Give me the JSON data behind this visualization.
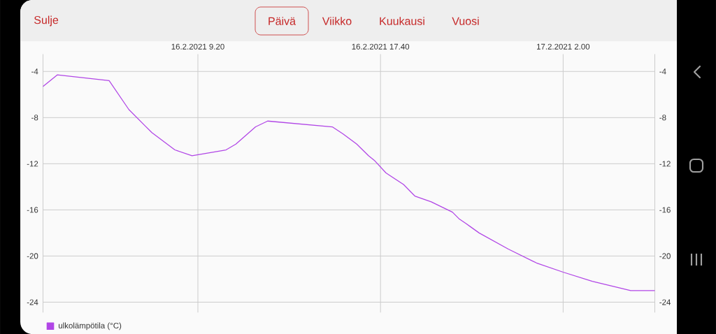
{
  "chart_data": {
    "type": "line",
    "annotations": [
      "Sulje",
      "Päivä",
      "Viikko",
      "Kuukausi",
      "Vuosi"
    ],
    "x": [
      "2021-02-16T02:16",
      "2021-02-16T02:55",
      "2021-02-16T05:17",
      "2021-02-16T06:11",
      "2021-02-16T06:55",
      "2021-02-16T07:14",
      "2021-02-16T08:17",
      "2021-02-16T09:04",
      "2021-02-16T10:37",
      "2021-02-16T11:04",
      "2021-02-16T11:58",
      "2021-02-16T12:31",
      "2021-02-16T15:28",
      "2021-02-16T15:57",
      "2021-02-16T16:35",
      "2021-02-16T17:07",
      "2021-02-16T17:23",
      "2021-02-16T17:55",
      "2021-02-16T18:43",
      "2021-02-16T19:14",
      "2021-02-16T19:59",
      "2021-02-16T20:57",
      "2021-02-16T21:16",
      "2021-02-16T21:35",
      "2021-02-16T21:48",
      "2021-02-16T22:10",
      "2021-02-16T23:30",
      "2021-02-17T00:47",
      "2021-02-17T02:00",
      "2021-02-17T03:20",
      "2021-02-17T05:05",
      "2021-02-17T06:11"
    ],
    "series": [
      {
        "name": "ulkolämpötila (°C)",
        "color": "#b146e6",
        "values": [
          -5.3,
          -4.3,
          -4.8,
          -7.3,
          -8.7,
          -9.3,
          -10.8,
          -11.3,
          -10.8,
          -10.3,
          -8.8,
          -8.3,
          -8.8,
          -9.4,
          -10.3,
          -11.3,
          -11.7,
          -12.8,
          -13.8,
          -14.8,
          -15.3,
          -16.2,
          -16.8,
          -17.2,
          -17.5,
          -18.0,
          -19.4,
          -20.6,
          -21.4,
          -22.2,
          -23.0,
          -23.0
        ]
      }
    ],
    "xlim": [
      "2021-02-16T02:16",
      "2021-02-17T06:11"
    ],
    "xticks": [
      {
        "value": "2021-02-16T09:20",
        "label": "16.2.2021 9.20"
      },
      {
        "value": "2021-02-16T17:40",
        "label": "16.2.2021 17.40"
      },
      {
        "value": "2021-02-17T02:00",
        "label": "17.2.2021 2.00"
      }
    ],
    "ylim": [
      -24.9,
      -2.5
    ],
    "yticks": [
      -24,
      -20,
      -16,
      -12,
      -8,
      -4
    ],
    "y2lim": [
      -24.9,
      -2.5
    ],
    "y2ticks": [
      -24,
      -20,
      -16,
      -12,
      -8,
      -4
    ],
    "grid": true,
    "legend": "bottom left",
    "line_style": "solid"
  }
}
